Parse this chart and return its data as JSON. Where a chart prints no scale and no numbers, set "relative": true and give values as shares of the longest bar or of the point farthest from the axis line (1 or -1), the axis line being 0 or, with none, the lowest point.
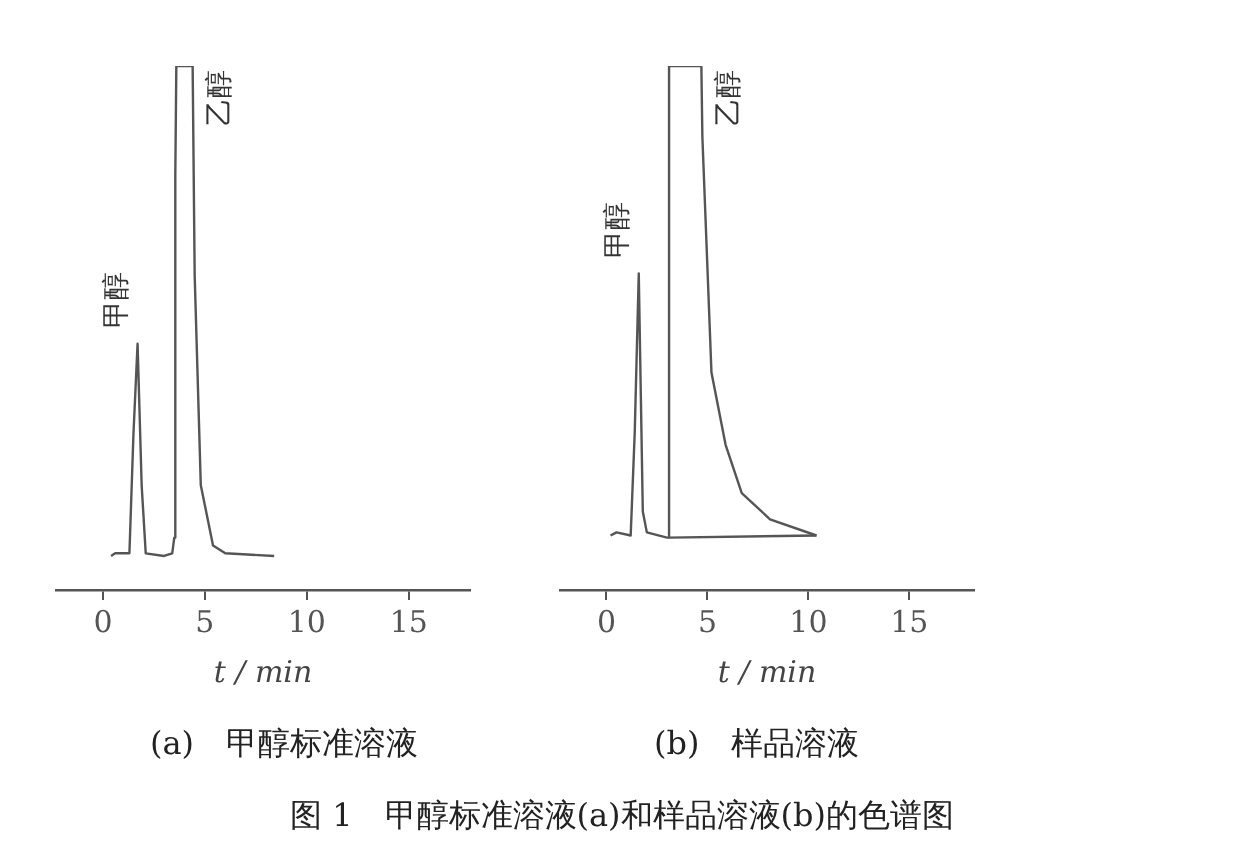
{
  "chart_data": [
    {
      "type": "line",
      "subtitle": "(a)　甲醇标准溶液",
      "xlabel": "t / min",
      "relative": true,
      "xlim": [
        -2.3,
        18
      ],
      "xticks": [
        0,
        5,
        10,
        15
      ],
      "grid": false,
      "legend": false,
      "marker": "none",
      "tick_labels": "x",
      "series": [
        {
          "color": "#555555",
          "x": [
            0.4,
            0.6,
            1.3,
            1.5,
            1.7,
            1.9,
            2.1,
            3.0,
            3.4,
            3.5,
            3.55,
            3.6,
            4.4,
            4.5,
            4.8,
            5.4,
            6.0,
            8.4
          ],
          "values": [
            0.065,
            0.07,
            0.07,
            0.3,
            0.47,
            0.2,
            0.07,
            0.065,
            0.07,
            0.1,
            0.79,
            1,
            1,
            0.6,
            0.2,
            0.085,
            0.07,
            0.065
          ]
        }
      ],
      "annotations": [
        {
          "text": "甲醇",
          "x": 1.7,
          "y": 0.47
        },
        {
          "text": "乙醇",
          "x": 4.4,
          "y": 1
        }
      ]
    },
    {
      "type": "line",
      "subtitle": "(b)　样品溶液",
      "xlabel": "t / min",
      "relative": true,
      "xlim": [
        -2.3,
        18.2
      ],
      "xticks": [
        0,
        5,
        10,
        15
      ],
      "grid": false,
      "legend": false,
      "marker": "none",
      "tick_labels": "x",
      "series": [
        {
          "color": "#555555",
          "x": [
            0.2,
            0.5,
            1.2,
            1.4,
            1.6,
            1.8,
            2.0,
            3.0,
            3.1,
            3.1,
            4.7,
            4.75,
            5.2,
            5.9,
            6.7,
            8.1,
            10.4
          ],
          "values": [
            0.104,
            0.11,
            0.104,
            0.3,
            0.604,
            0.15,
            0.11,
            0.1,
            0.1,
            1,
            1,
            0.865,
            0.415,
            0.277,
            0.185,
            0.135,
            0.104
          ]
        },
        {
          "color": "#555555",
          "x": [
            3.1,
            10.4
          ],
          "values": [
            0.1,
            0.104
          ]
        }
      ],
      "annotations": [
        {
          "text": "甲醇",
          "x": 1.6,
          "y": 0.604
        },
        {
          "text": "乙醇",
          "x": 4.7,
          "y": 1
        },
        "图 1　甲醇标准溶液(a)和样品溶液(b)的色谱图"
      ]
    }
  ]
}
